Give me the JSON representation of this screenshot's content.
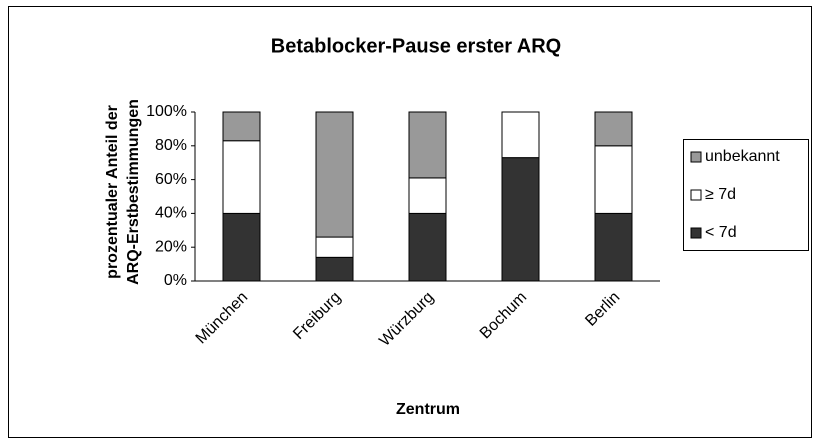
{
  "chart_data": {
    "type": "stacked_bar",
    "title": "Betablocker-Pause erster ARQ",
    "ylabel": [
      "prozentualer Anteil der",
      "ARQ-Erstbestimmungen"
    ],
    "xlabel": "Zentrum",
    "categories": [
      "München",
      "Freiburg",
      "Würzburg",
      "Bochum",
      "Berlin"
    ],
    "series": [
      {
        "name": "< 7d",
        "color": "#333333",
        "values": [
          40,
          14,
          40,
          73,
          40
        ]
      },
      {
        "name": "≥ 7d",
        "color": "#ffffff",
        "values": [
          43,
          12,
          21,
          27,
          40
        ]
      },
      {
        "name": "unbekannt",
        "color": "#999999",
        "values": [
          17,
          74,
          39,
          0,
          20
        ]
      }
    ],
    "ylim": [
      0,
      100
    ],
    "yticks": [
      {
        "value": 0,
        "label": "0%"
      },
      {
        "value": 20,
        "label": "20%"
      },
      {
        "value": 40,
        "label": "40%"
      },
      {
        "value": 60,
        "label": "60%"
      },
      {
        "value": 80,
        "label": "80%"
      },
      {
        "value": 100,
        "label": "100%"
      }
    ],
    "legend": "right"
  }
}
